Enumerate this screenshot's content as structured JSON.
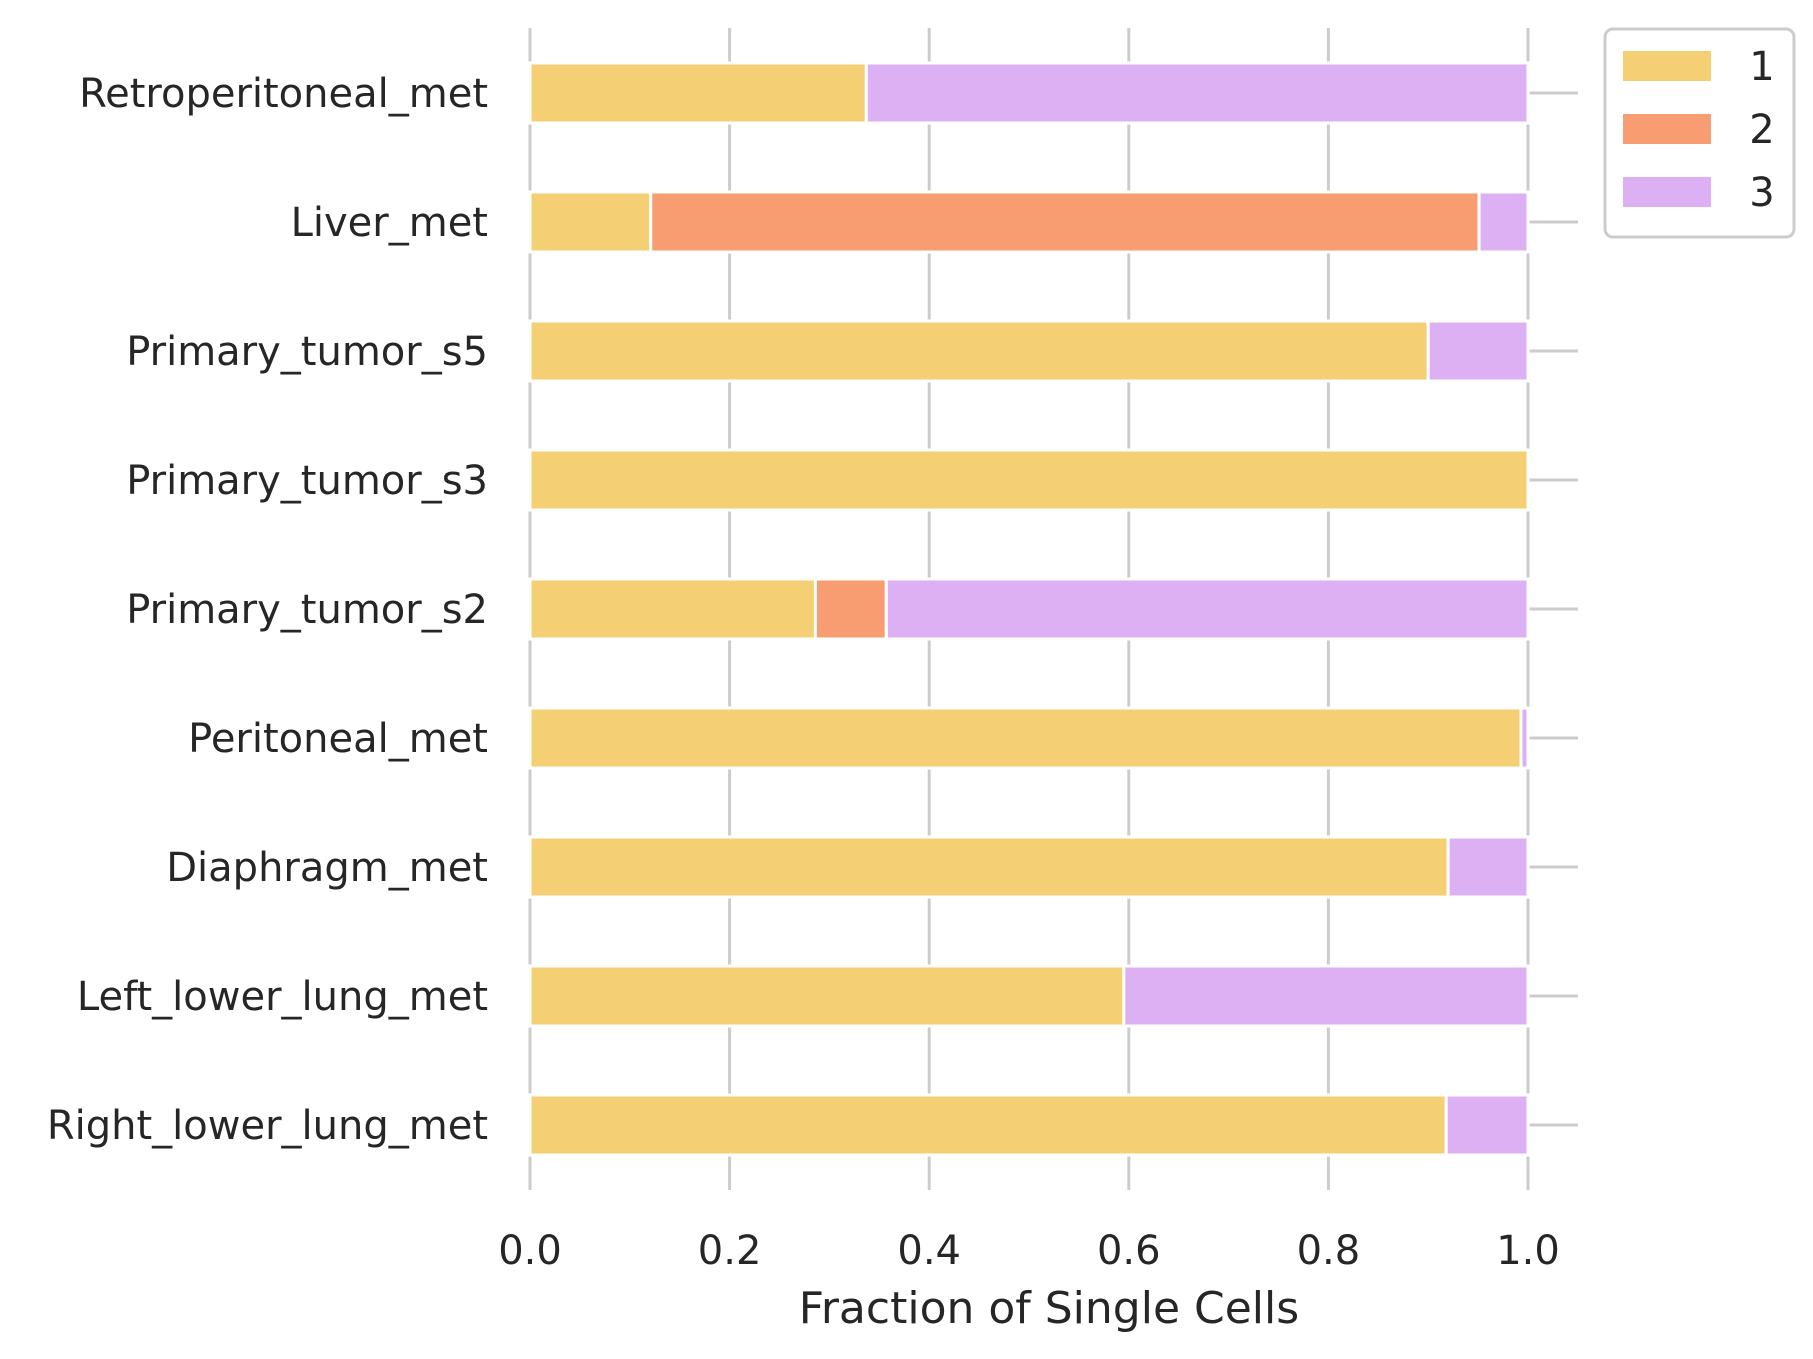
{
  "chart_data": {
    "type": "bar",
    "orientation": "horizontal",
    "stacked": true,
    "title": "",
    "xlabel": "Fraction of Single Cells",
    "ylabel": "",
    "xlim": [
      0,
      1.05
    ],
    "xticks": [
      "0.0",
      "0.2",
      "0.4",
      "0.6",
      "0.8",
      "1.0"
    ],
    "grid": "vertical",
    "legend_position": "top-right, outside plot",
    "categories": [
      "Retroperitoneal_met",
      "Liver_met",
      "Primary_tumor_s5",
      "Primary_tumor_s3",
      "Primary_tumor_s2",
      "Peritoneal_met",
      "Diaphragm_met",
      "Left_lower_lung_met",
      "Right_lower_lung_met"
    ],
    "series": [
      {
        "name": "1",
        "color": "#f4cf73",
        "values": [
          0.337,
          0.121,
          0.9,
          1.0,
          0.286,
          0.993,
          0.92,
          0.595,
          0.918
        ]
      },
      {
        "name": "2",
        "color": "#f89d72",
        "values": [
          0.0,
          0.83,
          0.0,
          0.0,
          0.071,
          0.0,
          0.0,
          0.0,
          0.0
        ]
      },
      {
        "name": "3",
        "color": "#dcb0f2",
        "values": [
          0.663,
          0.049,
          0.1,
          0.0,
          0.643,
          0.007,
          0.08,
          0.405,
          0.082
        ]
      }
    ]
  }
}
